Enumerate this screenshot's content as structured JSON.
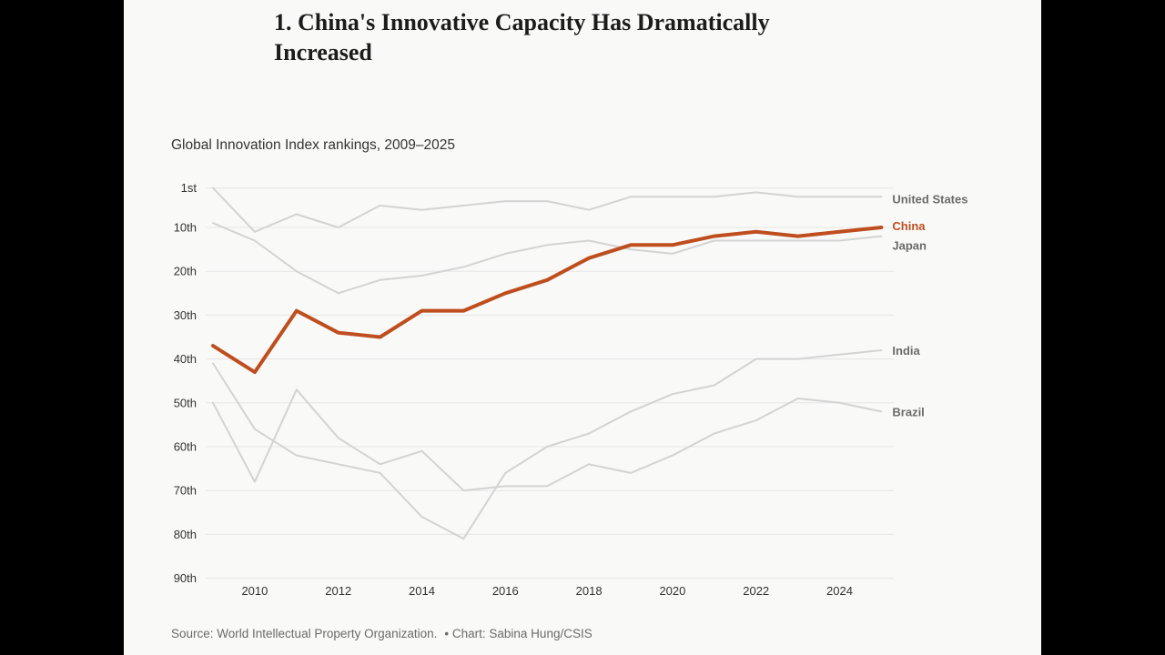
{
  "header": {
    "title": "1. China's Innovative Capacity Has Dramatically Increased",
    "subtitle": "Global Innovation Index rankings, 2009–2025"
  },
  "footer": {
    "source": "Source: World Intellectual Property Organization.",
    "credit": "• Chart: Sabina Hung/CSIS"
  },
  "colors": {
    "highlight": "#bf4e1f",
    "muted_line": "#d3d3d3",
    "label_gray": "#6b6b6b",
    "grid": "#e6e6e6"
  },
  "chart_data": {
    "type": "line",
    "title": "Global Innovation Index rankings, 2009–2025",
    "x": [
      2009,
      2010,
      2011,
      2012,
      2013,
      2014,
      2015,
      2016,
      2017,
      2018,
      2019,
      2020,
      2021,
      2022,
      2023,
      2024,
      2025
    ],
    "xticks": [
      2010,
      2012,
      2014,
      2016,
      2018,
      2020,
      2022,
      2024
    ],
    "xtick_labels": [
      "2010",
      "2012",
      "2014",
      "2016",
      "2018",
      "2020",
      "2022",
      "2024"
    ],
    "yticks": [
      1,
      10,
      20,
      30,
      40,
      50,
      60,
      70,
      80,
      90
    ],
    "ytick_labels": [
      "1st",
      "10th",
      "20th",
      "30th",
      "40th",
      "50th",
      "60th",
      "70th",
      "80th",
      "90th"
    ],
    "ylim": [
      1,
      90
    ],
    "y_inverted": true,
    "grid": true,
    "legend": "direct labels at right end of lines",
    "series": [
      {
        "name": "United States",
        "highlight": false,
        "values": [
          1,
          11,
          7,
          10,
          5,
          6,
          5,
          4,
          4,
          6,
          3,
          3,
          3,
          2,
          3,
          3,
          3
        ]
      },
      {
        "name": "China",
        "highlight": true,
        "values": [
          37,
          43,
          29,
          34,
          35,
          29,
          29,
          25,
          22,
          17,
          14,
          14,
          12,
          11,
          12,
          11,
          10
        ]
      },
      {
        "name": "Japan",
        "highlight": false,
        "values": [
          9,
          13,
          20,
          25,
          22,
          21,
          19,
          16,
          14,
          13,
          15,
          16,
          13,
          13,
          13,
          13,
          12
        ]
      },
      {
        "name": "India",
        "highlight": false,
        "values": [
          41,
          56,
          62,
          64,
          66,
          76,
          81,
          66,
          60,
          57,
          52,
          48,
          46,
          40,
          40,
          39,
          38
        ]
      },
      {
        "name": "Brazil",
        "highlight": false,
        "values": [
          50,
          68,
          47,
          58,
          64,
          61,
          70,
          69,
          69,
          64,
          66,
          62,
          57,
          54,
          49,
          50,
          52
        ]
      }
    ]
  }
}
